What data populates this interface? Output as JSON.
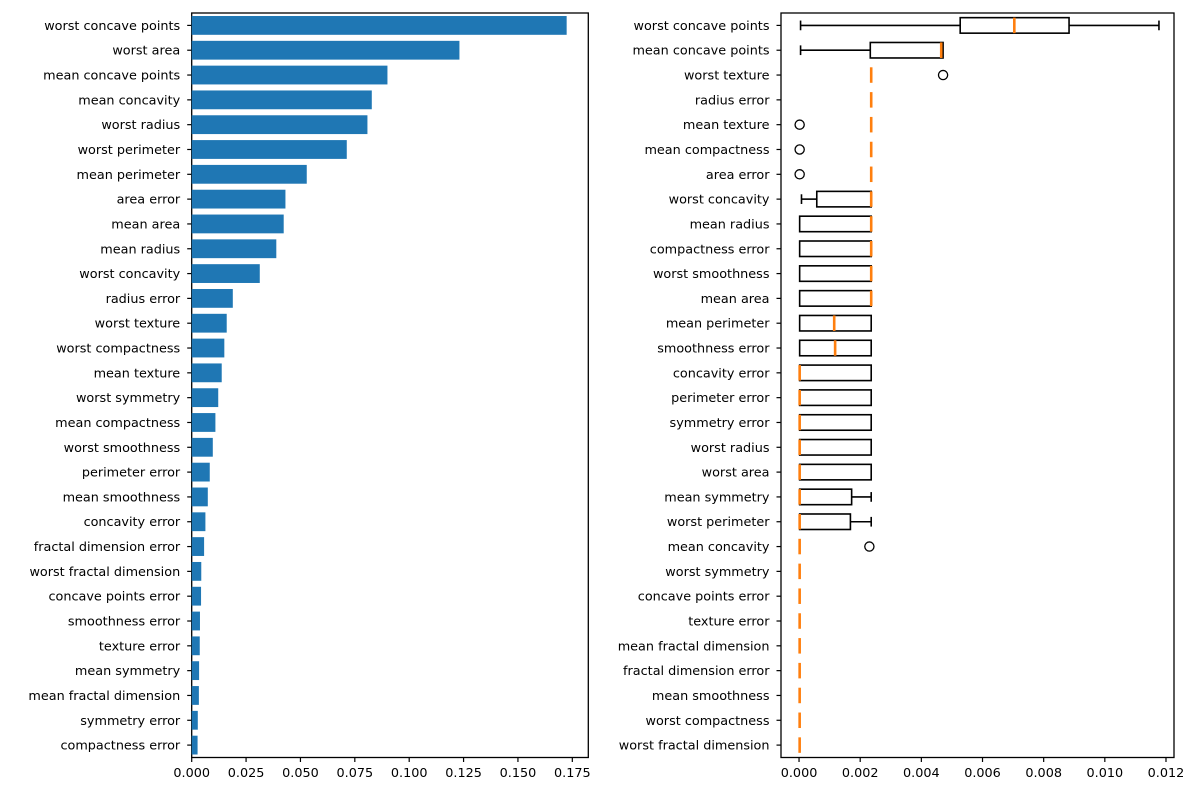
{
  "figure": {
    "description": "Two-panel matplotlib figure: left horizontal bar chart of feature importances, right horizontal box plot of permutation importances"
  },
  "colors": {
    "bar": "#1f77b4",
    "box_line": "#000000",
    "median_line": "#ff7f0e",
    "text": "#000000",
    "background": "#ffffff"
  },
  "chart_data": [
    {
      "type": "bar",
      "orientation": "horizontal",
      "title": "",
      "xlabel": "",
      "ylabel": "",
      "grid": false,
      "legend": null,
      "xlim": [
        0,
        0.18235
      ],
      "xticks": [
        0.0,
        0.025,
        0.05,
        0.075,
        0.1,
        0.125,
        0.15,
        0.175
      ],
      "xtick_labels": [
        "0.000",
        "0.025",
        "0.050",
        "0.075",
        "0.100",
        "0.125",
        "0.150",
        "0.175"
      ],
      "categories": [
        "worst concave points",
        "worst area",
        "mean concave points",
        "mean concavity",
        "worst radius",
        "worst perimeter",
        "mean perimeter",
        "area error",
        "mean area",
        "mean radius",
        "worst concavity",
        "radius error",
        "worst texture",
        "worst compactness",
        "mean texture",
        "worst symmetry",
        "mean compactness",
        "worst smoothness",
        "perimeter error",
        "mean smoothness",
        "concavity error",
        "fractal dimension error",
        "worst fractal dimension",
        "concave points error",
        "smoothness error",
        "texture error",
        "mean symmetry",
        "mean fractal dimension",
        "symmetry error",
        "compactness error"
      ],
      "values": [
        0.1724,
        0.1231,
        0.09,
        0.0828,
        0.0808,
        0.0713,
        0.0529,
        0.0431,
        0.0423,
        0.0389,
        0.0313,
        0.0189,
        0.0161,
        0.015,
        0.0138,
        0.0122,
        0.0109,
        0.0097,
        0.0083,
        0.0074,
        0.0063,
        0.0057,
        0.0044,
        0.0043,
        0.0038,
        0.0037,
        0.0034,
        0.0033,
        0.0028,
        0.0027
      ]
    },
    {
      "type": "boxplot",
      "orientation": "horizontal",
      "title": "",
      "xlabel": "",
      "ylabel": "",
      "grid": false,
      "legend": null,
      "xlim": [
        -0.00059,
        0.012262
      ],
      "xticks": [
        0.0,
        0.002,
        0.004,
        0.006,
        0.008,
        0.01,
        0.012
      ],
      "xtick_labels": [
        "0.000",
        "0.002",
        "0.004",
        "0.006",
        "0.008",
        "0.010",
        "0.012"
      ],
      "categories": [
        "worst concave points",
        "mean concave points",
        "worst texture",
        "radius error",
        "mean texture",
        "mean compactness",
        "area error",
        "worst concavity",
        "mean radius",
        "compactness error",
        "worst smoothness",
        "mean area",
        "mean perimeter",
        "smoothness error",
        "concavity error",
        "perimeter error",
        "symmetry error",
        "worst radius",
        "worst area",
        "mean symmetry",
        "worst perimeter",
        "mean concavity",
        "worst symmetry",
        "concave points error",
        "texture error",
        "mean fractal dimension",
        "fractal dimension error",
        "mean smoothness",
        "worst compactness",
        "worst fractal dimension"
      ],
      "boxes": [
        {
          "lo": 5e-05,
          "q1": 0.00527,
          "med": 0.00704,
          "q3": 0.00883,
          "hi": 0.01177,
          "fliers": []
        },
        {
          "lo": 5e-05,
          "q1": 0.00233,
          "med": 0.00465,
          "q3": 0.00471,
          "hi": 0.00471,
          "fliers": []
        },
        {
          "lo": 0.00236,
          "q1": 0.00236,
          "med": 0.00236,
          "q3": 0.00236,
          "hi": 0.00236,
          "fliers": [
            0.00471
          ]
        },
        {
          "lo": 0.00236,
          "q1": 0.00236,
          "med": 0.00236,
          "q3": 0.00236,
          "hi": 0.00236,
          "fliers": []
        },
        {
          "lo": 0.00236,
          "q1": 0.00236,
          "med": 0.00236,
          "q3": 0.00236,
          "hi": 0.00236,
          "fliers": [
            2e-05
          ]
        },
        {
          "lo": 0.00236,
          "q1": 0.00236,
          "med": 0.00236,
          "q3": 0.00236,
          "hi": 0.00236,
          "fliers": [
            2e-05
          ]
        },
        {
          "lo": 0.00236,
          "q1": 0.00236,
          "med": 0.00236,
          "q3": 0.00236,
          "hi": 0.00236,
          "fliers": [
            2e-05
          ]
        },
        {
          "lo": 8e-05,
          "q1": 0.00058,
          "med": 0.00236,
          "q3": 0.00236,
          "hi": 0.00236,
          "fliers": []
        },
        {
          "lo": 2e-05,
          "q1": 2e-05,
          "med": 0.00236,
          "q3": 0.00236,
          "hi": 0.00236,
          "fliers": []
        },
        {
          "lo": 2e-05,
          "q1": 2e-05,
          "med": 0.00236,
          "q3": 0.00236,
          "hi": 0.00236,
          "fliers": []
        },
        {
          "lo": 2e-05,
          "q1": 2e-05,
          "med": 0.00236,
          "q3": 0.00236,
          "hi": 0.00236,
          "fliers": []
        },
        {
          "lo": 2e-05,
          "q1": 2e-05,
          "med": 0.00236,
          "q3": 0.00236,
          "hi": 0.00236,
          "fliers": []
        },
        {
          "lo": 2e-05,
          "q1": 2e-05,
          "med": 0.00115,
          "q3": 0.00236,
          "hi": 0.00236,
          "fliers": []
        },
        {
          "lo": 2e-05,
          "q1": 2e-05,
          "med": 0.00118,
          "q3": 0.00236,
          "hi": 0.00236,
          "fliers": []
        },
        {
          "lo": 2e-05,
          "q1": 2e-05,
          "med": 2e-05,
          "q3": 0.00236,
          "hi": 0.00236,
          "fliers": []
        },
        {
          "lo": 2e-05,
          "q1": 2e-05,
          "med": 2e-05,
          "q3": 0.00236,
          "hi": 0.00236,
          "fliers": []
        },
        {
          "lo": 2e-05,
          "q1": 2e-05,
          "med": 2e-05,
          "q3": 0.00236,
          "hi": 0.00236,
          "fliers": []
        },
        {
          "lo": 2e-05,
          "q1": 2e-05,
          "med": 2e-05,
          "q3": 0.00236,
          "hi": 0.00236,
          "fliers": []
        },
        {
          "lo": 2e-05,
          "q1": 2e-05,
          "med": 2e-05,
          "q3": 0.00236,
          "hi": 0.00236,
          "fliers": []
        },
        {
          "lo": 2e-05,
          "q1": 2e-05,
          "med": 2e-05,
          "q3": 0.00172,
          "hi": 0.00236,
          "fliers": []
        },
        {
          "lo": 2e-05,
          "q1": 2e-05,
          "med": 2e-05,
          "q3": 0.00168,
          "hi": 0.00236,
          "fliers": []
        },
        {
          "lo": 2e-05,
          "q1": 2e-05,
          "med": 2e-05,
          "q3": 2e-05,
          "hi": 2e-05,
          "fliers": [
            0.0023
          ]
        },
        {
          "lo": 2e-05,
          "q1": 2e-05,
          "med": 2e-05,
          "q3": 2e-05,
          "hi": 2e-05,
          "fliers": []
        },
        {
          "lo": 2e-05,
          "q1": 2e-05,
          "med": 2e-05,
          "q3": 2e-05,
          "hi": 2e-05,
          "fliers": []
        },
        {
          "lo": 2e-05,
          "q1": 2e-05,
          "med": 2e-05,
          "q3": 2e-05,
          "hi": 2e-05,
          "fliers": []
        },
        {
          "lo": 2e-05,
          "q1": 2e-05,
          "med": 2e-05,
          "q3": 2e-05,
          "hi": 2e-05,
          "fliers": []
        },
        {
          "lo": 2e-05,
          "q1": 2e-05,
          "med": 2e-05,
          "q3": 2e-05,
          "hi": 2e-05,
          "fliers": []
        },
        {
          "lo": 2e-05,
          "q1": 2e-05,
          "med": 2e-05,
          "q3": 2e-05,
          "hi": 2e-05,
          "fliers": []
        },
        {
          "lo": 2e-05,
          "q1": 2e-05,
          "med": 2e-05,
          "q3": 2e-05,
          "hi": 2e-05,
          "fliers": []
        },
        {
          "lo": 2e-05,
          "q1": 2e-05,
          "med": 2e-05,
          "q3": 2e-05,
          "hi": 2e-05,
          "fliers": []
        }
      ]
    }
  ]
}
